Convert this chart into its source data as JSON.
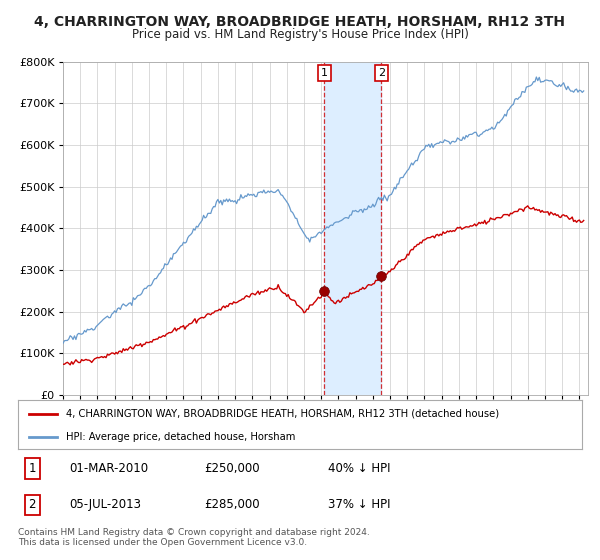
{
  "title_line1": "4, CHARRINGTON WAY, BROADBRIDGE HEATH, HORSHAM, RH12 3TH",
  "title_line2": "Price paid vs. HM Land Registry's House Price Index (HPI)",
  "legend_red": "4, CHARRINGTON WAY, BROADBRIDGE HEATH, HORSHAM, RH12 3TH (detached house)",
  "legend_blue": "HPI: Average price, detached house, Horsham",
  "transaction1_label": "1",
  "transaction1_date": "01-MAR-2010",
  "transaction1_price": "£250,000",
  "transaction1_hpi": "40% ↓ HPI",
  "transaction2_label": "2",
  "transaction2_date": "05-JUL-2013",
  "transaction2_price": "£285,000",
  "transaction2_hpi": "37% ↓ HPI",
  "footer": "Contains HM Land Registry data © Crown copyright and database right 2024.\nThis data is licensed under the Open Government Licence v3.0.",
  "red_color": "#cc0000",
  "blue_color": "#6699cc",
  "highlight_color": "#ddeeff",
  "transaction1_x": 2010.17,
  "transaction2_x": 2013.5,
  "ylim_min": 0,
  "ylim_max": 800000,
  "xlim_min": 1995,
  "xlim_max": 2025.5,
  "bg_color": "#ffffff"
}
